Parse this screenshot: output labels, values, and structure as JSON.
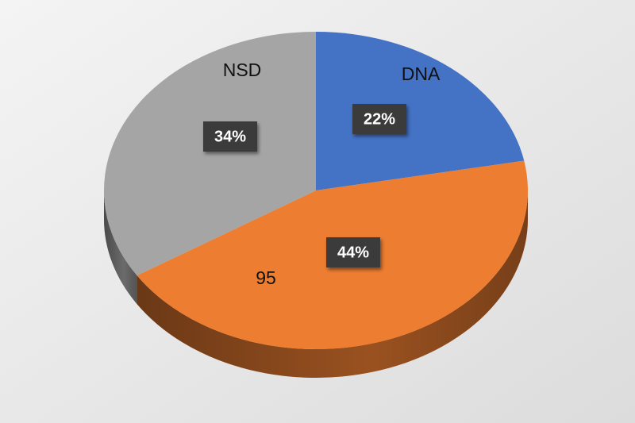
{
  "chart_data": {
    "type": "pie",
    "categories": [
      "DNA",
      "95",
      "NSD"
    ],
    "values": [
      22,
      44,
      34
    ],
    "value_labels": [
      "22%",
      "44%",
      "34%"
    ],
    "colors": [
      "#4472c4",
      "#ed7d31",
      "#a5a5a5"
    ]
  }
}
